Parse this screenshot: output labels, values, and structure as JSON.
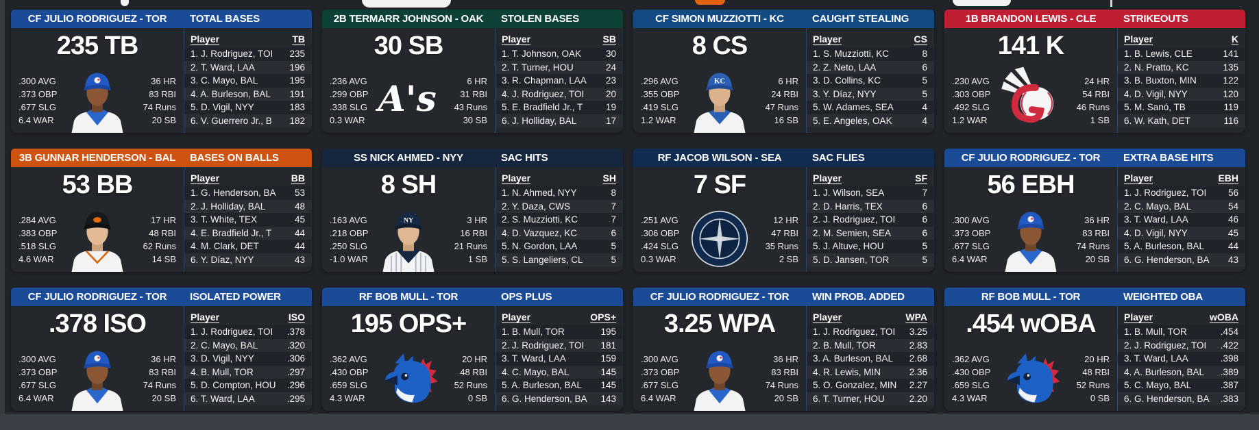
{
  "labels": {
    "player": "Player"
  },
  "panels": [
    {
      "player_title": "CF JULIO RODRIGUEZ - TOR",
      "stat_title": "TOTAL BASES",
      "header_bg": "#1b4b97",
      "big_stat": "235 TB",
      "left_stats": [
        ".300 AVG",
        ".373 OBP",
        ".677 SLG",
        "6.4 WAR"
      ],
      "right_stats": [
        "36 HR",
        "83 RBI",
        "74 Runs",
        "20 SB"
      ],
      "image": "portrait-tor",
      "stat_abbr": "TB",
      "rows": [
        {
          "name": "1. J. Rodriguez, TOI",
          "value": "235"
        },
        {
          "name": "2. T. Ward, LAA",
          "value": "196"
        },
        {
          "name": "3. C. Mayo, BAL",
          "value": "195"
        },
        {
          "name": "4. A. Burleson, BAL",
          "value": "191"
        },
        {
          "name": "5. D. Vigil, NYY",
          "value": "183"
        },
        {
          "name": "6. V. Guerrero Jr., B",
          "value": "182"
        }
      ]
    },
    {
      "player_title": "2B TERMARR JOHNSON - OAK",
      "stat_title": "STOLEN BASES",
      "header_bg": "#0d4036",
      "big_stat": "30 SB",
      "left_stats": [
        ".236 AVG",
        ".299 OBP",
        ".338 SLG",
        "0.3 WAR"
      ],
      "right_stats": [
        "6 HR",
        "31 RBI",
        "43 Runs",
        "30 SB"
      ],
      "image": "logo-oak",
      "stat_abbr": "SB",
      "rows": [
        {
          "name": "1. T. Johnson, OAK",
          "value": "30"
        },
        {
          "name": "2. T. Turner, HOU",
          "value": "24"
        },
        {
          "name": "3. R. Chapman, LAA",
          "value": "23"
        },
        {
          "name": "4. J. Rodriguez, TOI",
          "value": "20"
        },
        {
          "name": "5. E. Bradfield Jr., T",
          "value": "19"
        },
        {
          "name": "6. J. Holliday, BAL",
          "value": "17"
        }
      ]
    },
    {
      "player_title": "CF SIMON MUZZIOTTI - KC",
      "stat_title": "CAUGHT STEALING",
      "header_bg": "#134a83",
      "big_stat": "8 CS",
      "left_stats": [
        ".296 AVG",
        ".355 OBP",
        ".419 SLG",
        "1.2 WAR"
      ],
      "right_stats": [
        "6 HR",
        "24 RBI",
        "47 Runs",
        "16 SB"
      ],
      "image": "portrait-kc",
      "stat_abbr": "CS",
      "rows": [
        {
          "name": "1. S. Muzziotti, KC",
          "value": "8"
        },
        {
          "name": "2. Z. Neto, LAA",
          "value": "6"
        },
        {
          "name": "3. D. Collins, KC",
          "value": "5"
        },
        {
          "name": "3. Y. Díaz, NYY",
          "value": "5"
        },
        {
          "name": "5. W. Adames, SEA",
          "value": "4"
        },
        {
          "name": "5. E. Angeles, OAK",
          "value": "4"
        }
      ]
    },
    {
      "player_title": "1B BRANDON LEWIS - CLE",
      "stat_title": "STRIKEOUTS",
      "header_bg": "#c01e33",
      "big_stat": "141 K",
      "left_stats": [
        ".230 AVG",
        ".303 OBP",
        ".492 SLG",
        "1.2 WAR"
      ],
      "right_stats": [
        "24 HR",
        "54 RBI",
        "46 Runs",
        "1 SB"
      ],
      "image": "logo-cle",
      "stat_abbr": "K",
      "rows": [
        {
          "name": "1. B. Lewis, CLE",
          "value": "141"
        },
        {
          "name": "2. N. Pratto, KC",
          "value": "135"
        },
        {
          "name": "3. B. Buxton, MIN",
          "value": "122"
        },
        {
          "name": "4. D. Vigil, NYY",
          "value": "120"
        },
        {
          "name": "5. M. Sanó, TB",
          "value": "119"
        },
        {
          "name": "6. W. Kath, DET",
          "value": "116"
        }
      ]
    },
    {
      "player_title": "3B GUNNAR HENDERSON - BAL",
      "stat_title": "BASES ON BALLS",
      "header_bg": "#cf5310",
      "big_stat": "53 BB",
      "left_stats": [
        ".284 AVG",
        ".383 OBP",
        ".518 SLG",
        "4.6 WAR"
      ],
      "right_stats": [
        "17 HR",
        "48 RBI",
        "62 Runs",
        "14 SB"
      ],
      "image": "portrait-bal",
      "stat_abbr": "BB",
      "rows": [
        {
          "name": "1. G. Henderson, BA",
          "value": "53"
        },
        {
          "name": "2. J. Holliday, BAL",
          "value": "48"
        },
        {
          "name": "3. T. White, TEX",
          "value": "45"
        },
        {
          "name": "4. E. Bradfield Jr., T",
          "value": "44"
        },
        {
          "name": "4. M. Clark, DET",
          "value": "44"
        },
        {
          "name": "6. Y. Díaz, NYY",
          "value": "43"
        }
      ]
    },
    {
      "player_title": "SS NICK AHMED - NYY",
      "stat_title": "SAC HITS",
      "header_bg": "#16263f",
      "big_stat": "8 SH",
      "left_stats": [
        ".163 AVG",
        ".218 OBP",
        ".250 SLG",
        "-1.0 WAR"
      ],
      "right_stats": [
        "3 HR",
        "16 RBI",
        "21 Runs",
        "1 SB"
      ],
      "image": "portrait-nyy",
      "stat_abbr": "SH",
      "rows": [
        {
          "name": "1. N. Ahmed, NYY",
          "value": "8"
        },
        {
          "name": "2. Y. Daza, CWS",
          "value": "7"
        },
        {
          "name": "2. S. Muzziotti, KC",
          "value": "7"
        },
        {
          "name": "4. D. Vazquez, KC",
          "value": "6"
        },
        {
          "name": "5. N. Gordon, LAA",
          "value": "5"
        },
        {
          "name": "5. S. Langeliers, CL",
          "value": "5"
        }
      ]
    },
    {
      "player_title": "RF JACOB WILSON - SEA",
      "stat_title": "SAC FLIES",
      "header_bg": "#102c50",
      "big_stat": "7 SF",
      "left_stats": [
        ".251 AVG",
        ".306 OBP",
        ".424 SLG",
        "0.3 WAR"
      ],
      "right_stats": [
        "12 HR",
        "47 RBI",
        "35 Runs",
        "2 SB"
      ],
      "image": "logo-sea",
      "stat_abbr": "SF",
      "rows": [
        {
          "name": "1. J. Wilson, SEA",
          "value": "7"
        },
        {
          "name": "2. D. Harris, TEX",
          "value": "6"
        },
        {
          "name": "2. J. Rodriguez, TOI",
          "value": "6"
        },
        {
          "name": "2. M. Semien, SEA",
          "value": "6"
        },
        {
          "name": "5. J. Altuve, HOU",
          "value": "5"
        },
        {
          "name": "5. D. Jansen, TOR",
          "value": "5"
        }
      ]
    },
    {
      "player_title": "CF JULIO RODRIGUEZ - TOR",
      "stat_title": "EXTRA BASE HITS",
      "header_bg": "#1b4b97",
      "big_stat": "56 EBH",
      "left_stats": [
        ".300 AVG",
        ".373 OBP",
        ".677 SLG",
        "6.4 WAR"
      ],
      "right_stats": [
        "36 HR",
        "83 RBI",
        "74 Runs",
        "20 SB"
      ],
      "image": "portrait-tor",
      "stat_abbr": "EBH",
      "rows": [
        {
          "name": "1. J. Rodriguez, TOI",
          "value": "56"
        },
        {
          "name": "2. C. Mayo, BAL",
          "value": "54"
        },
        {
          "name": "3. T. Ward, LAA",
          "value": "46"
        },
        {
          "name": "4. D. Vigil, NYY",
          "value": "45"
        },
        {
          "name": "5. A. Burleson, BAL",
          "value": "44"
        },
        {
          "name": "6. G. Henderson, BA",
          "value": "43"
        }
      ]
    },
    {
      "player_title": "CF JULIO RODRIGUEZ - TOR",
      "stat_title": "ISOLATED POWER",
      "header_bg": "#1b4b97",
      "big_stat": ".378 ISO",
      "left_stats": [
        ".300 AVG",
        ".373 OBP",
        ".677 SLG",
        "6.4 WAR"
      ],
      "right_stats": [
        "36 HR",
        "83 RBI",
        "74 Runs",
        "20 SB"
      ],
      "image": "portrait-tor",
      "stat_abbr": "ISO",
      "rows": [
        {
          "name": "1. J. Rodriguez, TOI",
          "value": ".378"
        },
        {
          "name": "2. C. Mayo, BAL",
          "value": ".320"
        },
        {
          "name": "3. D. Vigil, NYY",
          "value": ".306"
        },
        {
          "name": "4. B. Mull, TOR",
          "value": ".297"
        },
        {
          "name": "5. D. Compton, HOU",
          "value": ".296"
        },
        {
          "name": "6. T. Ward, LAA",
          "value": ".295"
        }
      ]
    },
    {
      "player_title": "RF BOB MULL - TOR",
      "stat_title": "OPS PLUS",
      "header_bg": "#1b4b97",
      "big_stat": "195 OPS+",
      "left_stats": [
        ".362 AVG",
        ".430 OBP",
        ".659 SLG",
        "4.3 WAR"
      ],
      "right_stats": [
        "20 HR",
        "48 RBI",
        "52 Runs",
        "0 SB"
      ],
      "image": "logo-tor",
      "stat_abbr": "OPS+",
      "rows": [
        {
          "name": "1. B. Mull, TOR",
          "value": "195"
        },
        {
          "name": "2. J. Rodriguez, TOI",
          "value": "181"
        },
        {
          "name": "3. T. Ward, LAA",
          "value": "159"
        },
        {
          "name": "4. C. Mayo, BAL",
          "value": "145"
        },
        {
          "name": "5. A. Burleson, BAL",
          "value": "145"
        },
        {
          "name": "6. G. Henderson, BA",
          "value": "143"
        }
      ]
    },
    {
      "player_title": "CF JULIO RODRIGUEZ - TOR",
      "stat_title": "WIN PROB. ADDED",
      "header_bg": "#1b4b97",
      "big_stat": "3.25 WPA",
      "left_stats": [
        ".300 AVG",
        ".373 OBP",
        ".677 SLG",
        "6.4 WAR"
      ],
      "right_stats": [
        "36 HR",
        "83 RBI",
        "74 Runs",
        "20 SB"
      ],
      "image": "portrait-tor",
      "stat_abbr": "WPA",
      "rows": [
        {
          "name": "1. J. Rodriguez, TOI",
          "value": "3.25"
        },
        {
          "name": "2. B. Mull, TOR",
          "value": "2.83"
        },
        {
          "name": "3. A. Burleson, BAL",
          "value": "2.68"
        },
        {
          "name": "4. R. Lewis, MIN",
          "value": "2.36"
        },
        {
          "name": "5. O. Gonzalez, MIN",
          "value": "2.27"
        },
        {
          "name": "6. T. Turner, HOU",
          "value": "2.20"
        }
      ]
    },
    {
      "player_title": "RF BOB MULL - TOR",
      "stat_title": "WEIGHTED OBA",
      "header_bg": "#1b4b97",
      "big_stat": ".454 wOBA",
      "left_stats": [
        ".362 AVG",
        ".430 OBP",
        ".659 SLG",
        "4.3 WAR"
      ],
      "right_stats": [
        "20 HR",
        "48 RBI",
        "52 Runs",
        "0 SB"
      ],
      "image": "logo-tor",
      "stat_abbr": "wOBA",
      "rows": [
        {
          "name": "1. B. Mull, TOR",
          "value": ".454"
        },
        {
          "name": "2. J. Rodriguez, TOI",
          "value": ".422"
        },
        {
          "name": "3. T. Ward, LAA",
          "value": ".398"
        },
        {
          "name": "4. A. Burleson, BAL",
          "value": ".389"
        },
        {
          "name": "5. C. Mayo, BAL",
          "value": ".387"
        },
        {
          "name": "6. G. Henderson, BA",
          "value": ".383"
        }
      ]
    }
  ]
}
